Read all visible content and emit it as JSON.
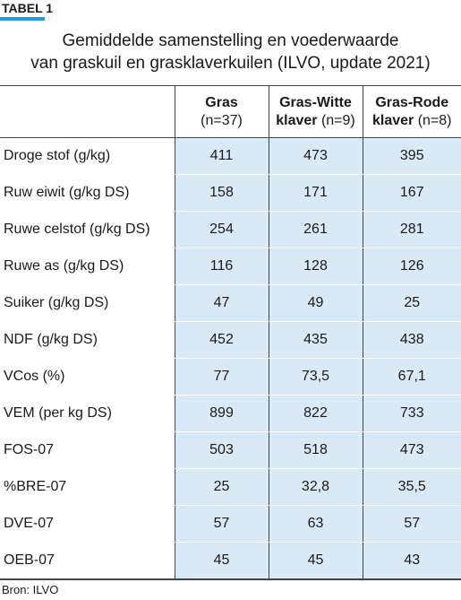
{
  "label": "TABEL 1",
  "title": [
    "Gemiddelde samenstelling en voederwaarde",
    "van graskuil en grasklaverkuilen (ILVO, update 2021)"
  ],
  "table": {
    "columns": [
      {
        "bold": [
          "Gras"
        ],
        "n": "(n=37)"
      },
      {
        "bold": [
          "Gras-Witte",
          "klaver"
        ],
        "n": "(n=9)"
      },
      {
        "bold": [
          "Gras-Rode",
          "klaver"
        ],
        "n": "(n=8)"
      }
    ],
    "rows": [
      [
        "Droge stof (g/kg)",
        "411",
        "473",
        "395"
      ],
      [
        "Ruw eiwit (g/kg DS)",
        "158",
        "171",
        "167"
      ],
      [
        "Ruwe celstof (g/kg DS)",
        "254",
        "261",
        "281"
      ],
      [
        "Ruwe as (g/kg DS)",
        "116",
        "128",
        "126"
      ],
      [
        "Suiker (g/kg DS)",
        "47",
        "49",
        "25"
      ],
      [
        "NDF (g/kg DS)",
        "452",
        "435",
        "438"
      ],
      [
        "VCos (%)",
        "77",
        "73,5",
        "67,1"
      ],
      [
        "VEM (per kg DS)",
        "899",
        "822",
        "733"
      ],
      [
        "FOS-07",
        "503",
        "518",
        "473"
      ],
      [
        "%BRE-07",
        "25",
        "32,8",
        "35,5"
      ],
      [
        "DVE-07",
        "57",
        "63",
        "57"
      ],
      [
        "OEB-07",
        "45",
        "45",
        "43"
      ]
    ]
  },
  "source": "Bron: ILVO"
}
